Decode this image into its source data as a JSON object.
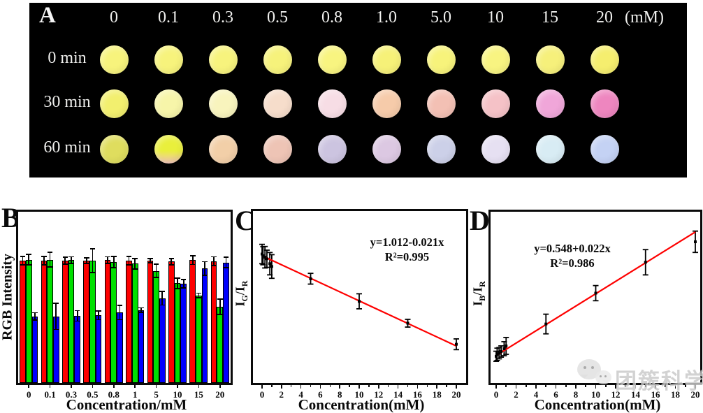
{
  "panelA": {
    "label": "A",
    "unit_label": "(mM)",
    "concentrations": [
      "0",
      "0.1",
      "0.3",
      "0.5",
      "0.8",
      "1.0",
      "5.0",
      "10",
      "15",
      "20"
    ],
    "rows": [
      {
        "label": "0 min",
        "colors": [
          "#f7f37c",
          "#f7f37c",
          "#f7f37d",
          "#f6f27b",
          "#f8f480",
          "#f6f178",
          "#f7f37b",
          "#f8f481",
          "#f6f07b",
          "#f5ee6e"
        ]
      },
      {
        "label": "30 min",
        "colors": [
          "#f2ef6e",
          "#f7f5a9",
          "#f8f4bd",
          "#f6ddcb",
          "#f7dde5",
          "#f6cbaa",
          "#f3c0b4",
          "#f5c2c7",
          "#f0a6d9",
          "#ee86bf"
        ]
      },
      {
        "label": "60 min",
        "colors": [
          "#dfdd5e",
          "#e9ef3c|#f2c4bc",
          "#f2cfa8",
          "#eec4b5",
          "#ccc4e0",
          "#dcc8e2",
          "#ccd0e8",
          "#e6e0f2",
          "#d8ecf4",
          "#c4d2f4"
        ]
      }
    ]
  },
  "chart_data": [
    {
      "type": "bar",
      "label": "B",
      "ylabel": "RGB Intensity",
      "xlabel": "Concentration/mM",
      "categories": [
        "0",
        "0.1",
        "0.3",
        "0.5",
        "0.8",
        "1",
        "5",
        "10",
        "15",
        "20"
      ],
      "ylim": [
        0,
        350
      ],
      "grid": false,
      "series": [
        {
          "name": "Red channel",
          "color": "#fe0000",
          "values": [
            250,
            250,
            250,
            250,
            251,
            250,
            250,
            248,
            251,
            249
          ],
          "errors": [
            10,
            10,
            8,
            7,
            8,
            10,
            6,
            8,
            10,
            10
          ]
        },
        {
          "name": "Green channel",
          "color": "#00e000",
          "values": [
            252,
            252,
            251,
            250,
            247,
            244,
            229,
            204,
            179,
            156
          ],
          "errors": [
            12,
            16,
            8,
            26,
            13,
            12,
            15,
            12,
            6,
            17
          ]
        },
        {
          "name": "Blue channel",
          "color": "#0000fe",
          "values": [
            136,
            136,
            137,
            138,
            144,
            149,
            173,
            203,
            234,
            246
          ],
          "errors": [
            9,
            28,
            12,
            10,
            16,
            6,
            15,
            10,
            15,
            12
          ]
        }
      ]
    },
    {
      "type": "scatter",
      "label": "C",
      "ylabel": "IG/IR",
      "ylabel_parts": [
        "I",
        "G",
        "/I",
        "R"
      ],
      "xlabel": "Concentration(mM)",
      "equation": "y=1.012-0.021x",
      "r2": "R²=0.995",
      "x": [
        0,
        0.1,
        0.3,
        0.5,
        0.8,
        1,
        5,
        10,
        15,
        20
      ],
      "y": [
        1.02,
        1.012,
        1.005,
        0.998,
        0.975,
        0.962,
        0.905,
        0.8,
        0.698,
        0.6
      ],
      "errors": [
        0.045,
        0.042,
        0.05,
        0.04,
        0.052,
        0.055,
        0.025,
        0.035,
        0.018,
        0.025
      ],
      "fit": {
        "intercept": 1.012,
        "slope": -0.021,
        "x_start": 0,
        "x_end": 20
      },
      "line_color": "#fe0000",
      "xlim": [
        -0.95,
        21.0
      ],
      "ylim": [
        0.42,
        1.22
      ],
      "xticks_major": [
        0,
        2,
        4,
        6,
        8,
        10,
        12,
        14,
        16,
        18,
        20
      ],
      "xticks_minor": [
        1,
        3,
        5,
        7,
        9,
        11,
        13,
        15,
        17,
        19
      ]
    },
    {
      "type": "scatter",
      "label": "D",
      "ylabel": "IB/IR",
      "ylabel_parts": [
        "I",
        "B",
        "/I",
        "R"
      ],
      "xlabel": "Concentration(mM)",
      "equation": "y=0.548+0.022x",
      "r2": "R²=0.986",
      "x": [
        0,
        0.1,
        0.3,
        0.5,
        0.8,
        1,
        5,
        10,
        15,
        20
      ],
      "y": [
        0.545,
        0.552,
        0.556,
        0.562,
        0.572,
        0.582,
        0.66,
        0.77,
        0.88,
        0.953
      ],
      "errors": [
        0.018,
        0.022,
        0.02,
        0.02,
        0.025,
        0.03,
        0.035,
        0.027,
        0.045,
        0.038
      ],
      "fit": {
        "intercept": 0.548,
        "slope": 0.022,
        "x_start": 0,
        "x_end": 20
      },
      "line_color": "#fe0000",
      "xlim": [
        -0.6,
        21.0
      ],
      "ylim": [
        0.45,
        1.06
      ],
      "xticks_major": [
        0,
        2,
        4,
        6,
        8,
        10,
        12,
        14,
        16,
        18,
        20
      ],
      "xticks_minor": [
        1,
        3,
        5,
        7,
        9,
        11,
        13,
        15,
        17,
        19
      ]
    }
  ],
  "watermark": {
    "text": "团簇科学",
    "icon": "wechat-logo"
  }
}
